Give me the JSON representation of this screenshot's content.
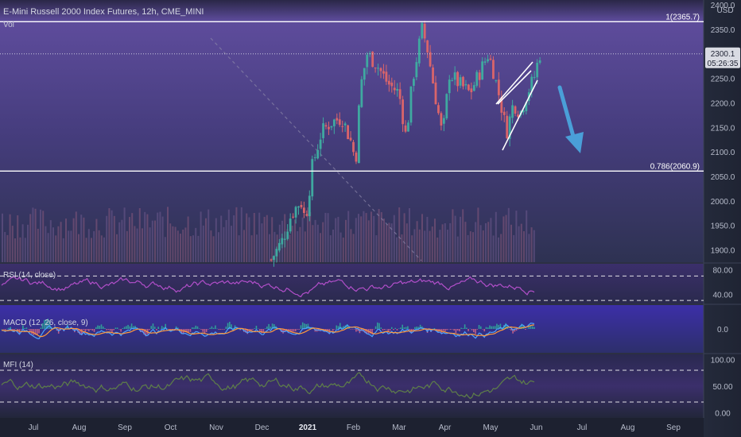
{
  "header": {
    "symbol_title": "E-Mini Russell 2000 Index Futures, 12h, CME_MINI",
    "vol_label": "Vol"
  },
  "price_axis": {
    "currency": "USD",
    "current_price": "2300.1",
    "countdown": "05:26:35"
  },
  "chart_data": [
    {
      "type": "candlestick",
      "title": "E-Mini Russell 2000 Index Futures, 12h, CME_MINI",
      "y_unit": "USD",
      "ylim": [
        1875,
        2410
      ],
      "y_ticks": [
        1900,
        1950,
        2000,
        2050,
        2100,
        2150,
        2200,
        2250,
        2300,
        2350,
        2400
      ],
      "x_ticks": [
        "Jul",
        "Aug",
        "Sep",
        "Oct",
        "Nov",
        "Dec",
        "2021",
        "Feb",
        "Mar",
        "Apr",
        "May",
        "Jun",
        "Jul",
        "Aug",
        "Sep"
      ],
      "x_tick_positions": [
        0,
        1,
        2,
        3,
        4,
        5,
        6,
        7,
        8,
        9,
        10,
        11,
        12,
        13,
        14
      ],
      "close_path": [
        {
          "t": 5.2,
          "v": 1880
        },
        {
          "t": 5.45,
          "v": 1920
        },
        {
          "t": 5.65,
          "v": 1975
        },
        {
          "t": 5.85,
          "v": 2000
        },
        {
          "t": 5.95,
          "v": 1960
        },
        {
          "t": 6.1,
          "v": 2070
        },
        {
          "t": 6.3,
          "v": 2140
        },
        {
          "t": 6.5,
          "v": 2160
        },
        {
          "t": 6.75,
          "v": 2170
        },
        {
          "t": 6.95,
          "v": 2120
        },
        {
          "t": 7.05,
          "v": 2080
        },
        {
          "t": 7.15,
          "v": 2230
        },
        {
          "t": 7.3,
          "v": 2300
        },
        {
          "t": 7.5,
          "v": 2280
        },
        {
          "t": 7.75,
          "v": 2240
        },
        {
          "t": 8.0,
          "v": 2220
        },
        {
          "t": 8.15,
          "v": 2130
        },
        {
          "t": 8.3,
          "v": 2250
        },
        {
          "t": 8.5,
          "v": 2350
        },
        {
          "t": 8.6,
          "v": 2320
        },
        {
          "t": 8.8,
          "v": 2210
        },
        {
          "t": 8.95,
          "v": 2130
        },
        {
          "t": 9.1,
          "v": 2260
        },
        {
          "t": 9.3,
          "v": 2240
        },
        {
          "t": 9.55,
          "v": 2220
        },
        {
          "t": 9.75,
          "v": 2260
        },
        {
          "t": 9.95,
          "v": 2300
        },
        {
          "t": 10.05,
          "v": 2270
        },
        {
          "t": 10.2,
          "v": 2210
        },
        {
          "t": 10.35,
          "v": 2140
        },
        {
          "t": 10.5,
          "v": 2200
        },
        {
          "t": 10.65,
          "v": 2180
        },
        {
          "t": 10.8,
          "v": 2220
        },
        {
          "t": 10.95,
          "v": 2250
        },
        {
          "t": 11.05,
          "v": 2290
        },
        {
          "t": 11.08,
          "v": 2300.1
        }
      ],
      "fib_levels": [
        {
          "label": "1(2365.7)",
          "value": 2365.7
        },
        {
          "label": "0.786(2060.9)",
          "value": 2060.9
        }
      ],
      "last_price": 2300.1
    },
    {
      "type": "line",
      "title": "RSI (14, close)",
      "ylim": [
        25,
        90
      ],
      "y_ticks": [
        80.0,
        40.0
      ],
      "bands": [
        70,
        30
      ]
    },
    {
      "type": "line",
      "title": "MACD (12, 26, close, 9)",
      "ylim": [
        -60,
        60
      ],
      "y_ticks": [
        0.0
      ]
    },
    {
      "type": "line",
      "title": "MFI (14)",
      "ylim": [
        -10,
        110
      ],
      "y_ticks": [
        100.0,
        50.0,
        0.0
      ],
      "bands": [
        80,
        20
      ]
    }
  ]
}
